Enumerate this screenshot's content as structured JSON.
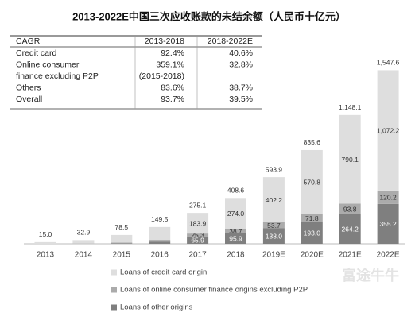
{
  "chart_data": {
    "type": "stacked_bar",
    "title": "2013-2022E中国三次应收账款的未结余额（人民币十亿元）",
    "categories": [
      "2013",
      "2014",
      "2015",
      "2016",
      "2017",
      "2018",
      "2019E",
      "2020E",
      "2021E",
      "2022E"
    ],
    "series": [
      {
        "name": "Loans of other origins",
        "color": "#7f7f7f",
        "values": [
          0,
          1,
          3,
          20,
          65.9,
          95.9,
          138.0,
          193.0,
          264.2,
          355.2
        ],
        "value_labels": [
          null,
          null,
          null,
          null,
          "65.9",
          "95.9",
          "138.0",
          "193.0",
          "264.2",
          "355.2"
        ]
      },
      {
        "name": "Loans of online consumer finance origins excluding P2P",
        "color": "#ababab",
        "values": [
          0,
          1,
          8,
          15,
          25.3,
          38.7,
          53.7,
          71.8,
          93.8,
          120.2
        ],
        "value_labels": [
          null,
          null,
          null,
          null,
          "25.3",
          "38.7",
          "53.7",
          "71.8",
          "93.8",
          "120.2"
        ]
      },
      {
        "name": "Loans of credit card origin",
        "color": "#dedede",
        "values": [
          15.0,
          30.9,
          67.5,
          114.5,
          183.9,
          274.0,
          402.2,
          570.8,
          790.1,
          1072.2
        ],
        "value_labels": [
          null,
          null,
          null,
          null,
          "183.9",
          "274.0",
          "402.2",
          "570.8",
          "790.1",
          "1,072.2"
        ]
      }
    ],
    "total_labels": [
      "15.0",
      "32.9",
      "78.5",
      "149.5",
      "275.1",
      "408.6",
      "593.9",
      "835.6",
      "1,148.1",
      "1,547.6"
    ],
    "ylim": [
      0,
      1600
    ],
    "table": {
      "header": [
        "CAGR",
        "2013-2018",
        "2018-2022E"
      ],
      "rows": [
        [
          "Credit card",
          "92.4%",
          "40.6%"
        ],
        [
          "Online consumer",
          "359.1%",
          "32.8%"
        ],
        [
          "finance excluding P2P",
          "(2015-2018)",
          null
        ],
        [
          "Others",
          "83.6%",
          "38.7%"
        ],
        [
          "Overall",
          "93.7%",
          "39.5%"
        ]
      ]
    },
    "watermark": "富途牛牛"
  }
}
